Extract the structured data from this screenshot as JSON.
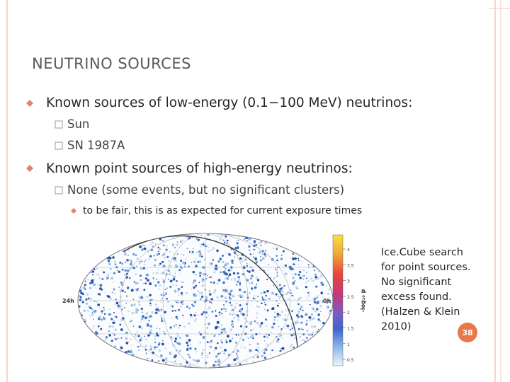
{
  "title": "NEUTRINO SOURCES",
  "bullets": [
    {
      "text": "Known sources of low-energy (0.1−100 MeV) neutrinos:",
      "sub": [
        "Sun",
        "SN 1987A"
      ]
    },
    {
      "text": "Known point sources of high-energy neutrinos:",
      "sub": [
        {
          "text": "None (some events, but no significant clusters)",
          "sub": [
            "to be fair, this is as expected for current exposure times"
          ]
        }
      ]
    }
  ],
  "figure": {
    "ra_labels": [
      "24h",
      "0h"
    ],
    "colorbar": {
      "label": "-log₁₀ p",
      "lim": [
        0.3,
        4.45
      ],
      "ticks": [
        4,
        3.5,
        3,
        2.5,
        2,
        1.5,
        1,
        0.5
      ]
    }
  },
  "caption": [
    "Ice.Cube search",
    "for point sources.",
    "No significant",
    "excess found.",
    "(Halzen & Klein",
    "2010)"
  ],
  "page_number": "38"
}
